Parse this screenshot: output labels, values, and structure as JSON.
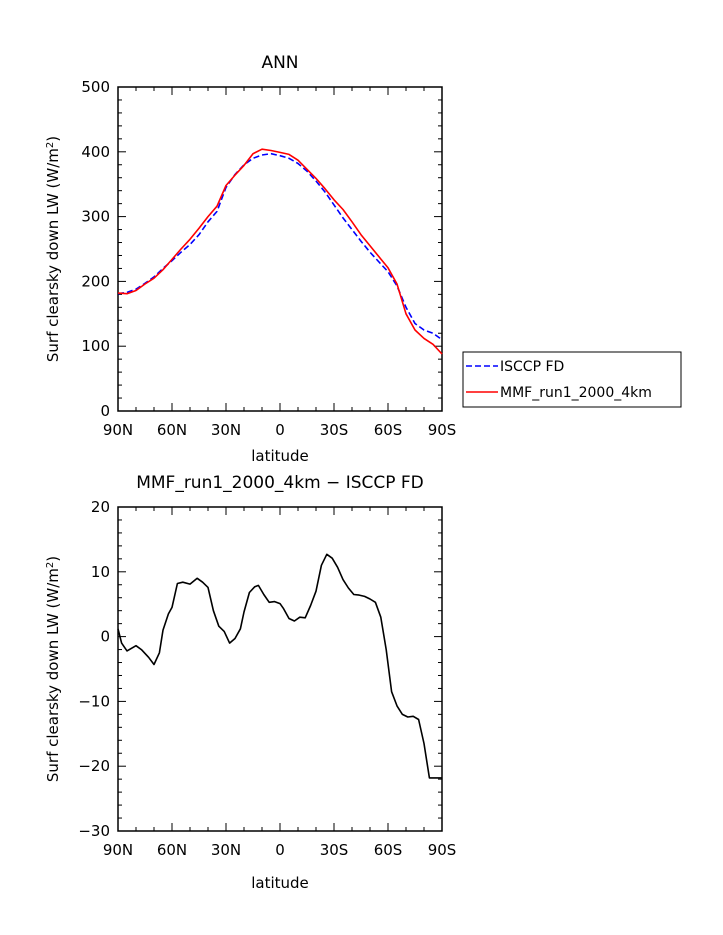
{
  "chart_data": [
    {
      "type": "line",
      "title": "ANN",
      "xlabel": "latitude",
      "ylabel_main": "Surf clearsky down LW (W/m",
      "ylabel_sup": "2",
      "ylabel_tail": ")",
      "xlim": [
        90,
        -90
      ],
      "ylim": [
        0,
        500
      ],
      "x_ticks": [
        90,
        60,
        30,
        0,
        -30,
        -60,
        -90
      ],
      "x_tick_labels": [
        "90N",
        "60N",
        "30N",
        "0",
        "30S",
        "60S",
        "90S"
      ],
      "y_ticks": [
        0,
        100,
        200,
        300,
        400,
        500
      ],
      "y_tick_labels": [
        "0",
        "100",
        "200",
        "300",
        "400",
        "500"
      ],
      "legend_position": "right",
      "series": [
        {
          "name": "ISCCP FD",
          "color": "#0000ff",
          "dash": "dashed",
          "x": [
            90,
            85,
            80,
            75,
            70,
            65,
            60,
            55,
            50,
            45,
            40,
            35,
            30,
            25,
            20,
            15,
            10,
            5,
            0,
            -5,
            -10,
            -15,
            -20,
            -25,
            -30,
            -35,
            -40,
            -45,
            -50,
            -55,
            -60,
            -65,
            -70,
            -75,
            -80,
            -85,
            -90
          ],
          "y": [
            181,
            183,
            188,
            197,
            207,
            220,
            232,
            245,
            257,
            272,
            292,
            308,
            345,
            365,
            380,
            390,
            395,
            397,
            394,
            390,
            382,
            370,
            355,
            338,
            318,
            298,
            280,
            262,
            245,
            230,
            215,
            193,
            160,
            135,
            125,
            120,
            110
          ]
        },
        {
          "name": "MMF_run1_2000_4km",
          "color": "#ff0000",
          "dash": "solid",
          "x": [
            90,
            85,
            80,
            75,
            70,
            65,
            60,
            55,
            50,
            45,
            40,
            35,
            30,
            25,
            20,
            15,
            10,
            5,
            0,
            -5,
            -10,
            -15,
            -20,
            -25,
            -30,
            -35,
            -40,
            -45,
            -50,
            -55,
            -60,
            -65,
            -70,
            -75,
            -80,
            -85,
            -90
          ],
          "y": [
            182,
            181,
            186,
            196,
            205,
            218,
            234,
            250,
            265,
            282,
            300,
            316,
            348,
            364,
            379,
            397,
            404,
            402,
            399,
            396,
            387,
            373,
            359,
            343,
            326,
            311,
            292,
            272,
            255,
            238,
            221,
            196,
            150,
            125,
            112,
            103,
            88
          ]
        }
      ]
    },
    {
      "type": "line",
      "title": "MMF_run1_2000_4km − ISCCP FD",
      "xlabel": "latitude",
      "ylabel_main": "Surf clearsky down LW (W/m",
      "ylabel_sup": "2",
      "ylabel_tail": ")",
      "xlim": [
        90,
        -90
      ],
      "ylim": [
        -30,
        20
      ],
      "x_ticks": [
        90,
        60,
        30,
        0,
        -30,
        -60,
        -90
      ],
      "x_tick_labels": [
        "90N",
        "60N",
        "30N",
        "0",
        "30S",
        "60S",
        "90S"
      ],
      "y_ticks": [
        -30,
        -20,
        -10,
        0,
        10,
        20
      ],
      "y_tick_labels": [
        "−30",
        "−20",
        "−10",
        "0",
        "10",
        "20"
      ],
      "series": [
        {
          "color": "#000000",
          "x": [
            90,
            88,
            85,
            80,
            77,
            73,
            70,
            67,
            65,
            62,
            60,
            57,
            54,
            50,
            46,
            43,
            40,
            37,
            34,
            31,
            28,
            25,
            22,
            20,
            17,
            14,
            12,
            9,
            6,
            3,
            0,
            -2,
            -5,
            -8,
            -11,
            -14,
            -17,
            -20,
            -23,
            -26,
            -29,
            -32,
            -35,
            -38,
            -41,
            -44,
            -47,
            -50,
            -53,
            -56,
            -59,
            -62,
            -65,
            -68,
            -71,
            -74,
            -77,
            -80,
            -83,
            -86,
            -88,
            -90
          ],
          "y": [
            1.2,
            -1.0,
            -2.2,
            -1.4,
            -2.0,
            -3.2,
            -4.3,
            -2.5,
            1.0,
            3.5,
            4.5,
            8.2,
            8.4,
            8.1,
            9.0,
            8.4,
            7.6,
            4.0,
            1.6,
            0.8,
            -1.0,
            -0.3,
            1.2,
            3.8,
            6.8,
            7.7,
            7.9,
            6.5,
            5.3,
            5.4,
            5.1,
            4.3,
            2.8,
            2.4,
            3.0,
            2.9,
            4.8,
            7.0,
            11.0,
            12.7,
            12.1,
            10.7,
            8.8,
            7.5,
            6.5,
            6.4,
            6.2,
            5.8,
            5.3,
            3.0,
            -2.0,
            -8.5,
            -10.7,
            -12.0,
            -12.4,
            -12.3,
            -12.8,
            -16.5,
            -21.8,
            -21.8,
            -21.8,
            -21.8
          ]
        }
      ]
    }
  ]
}
